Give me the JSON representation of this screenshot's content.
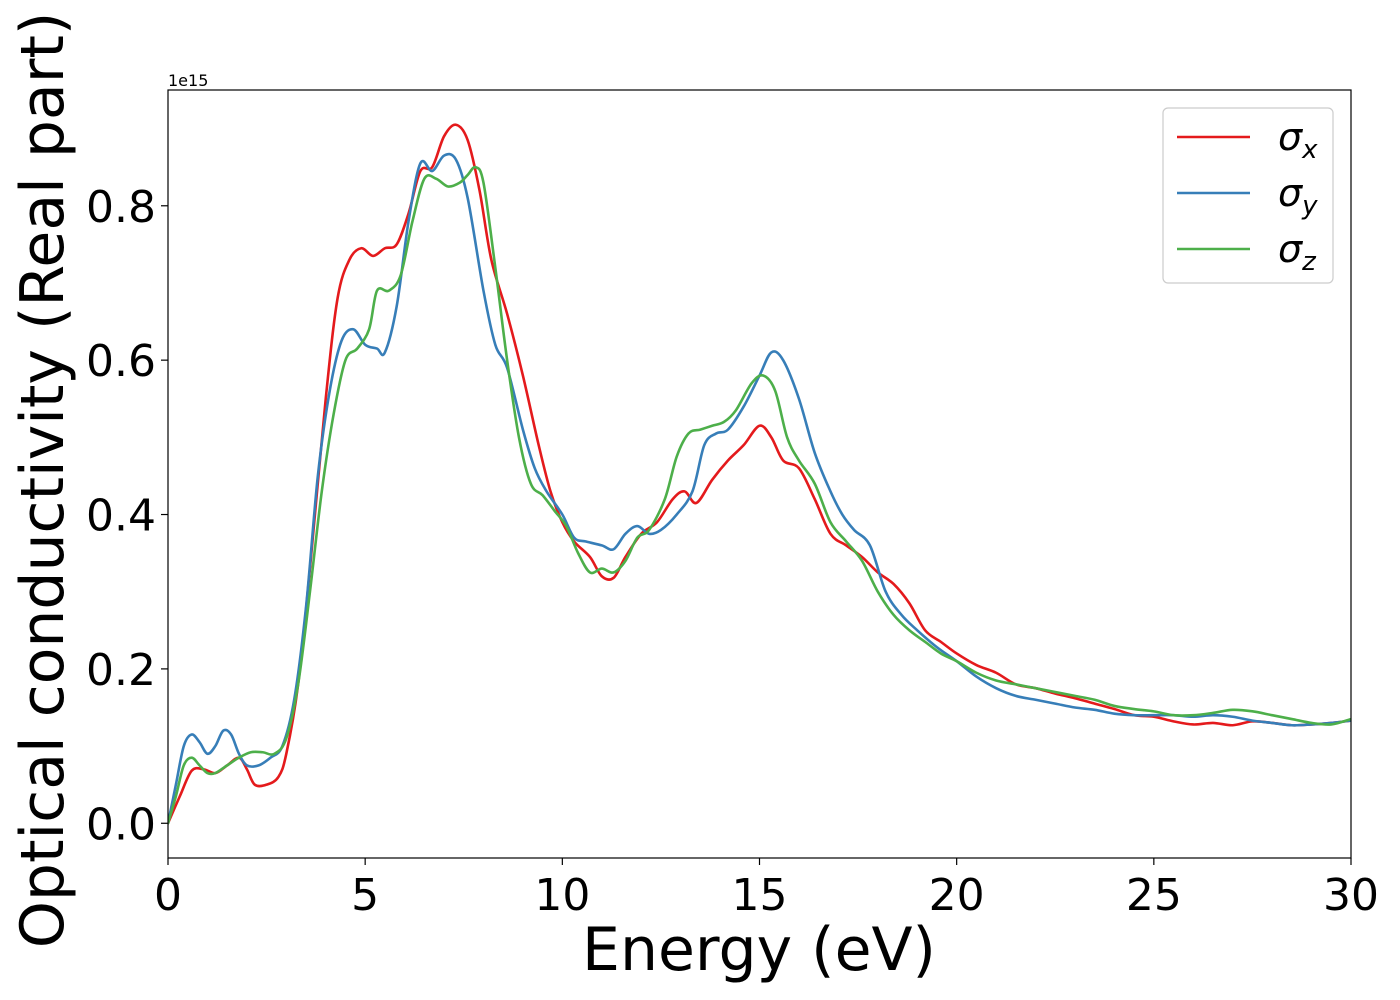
{
  "chart_data": {
    "type": "line",
    "title": "",
    "xlabel": "Energy (eV)",
    "ylabel": "Optical conductivity (Real part)",
    "y_offset_label": "1e15",
    "xlim": [
      0,
      30
    ],
    "ylim": [
      -0.045,
      0.95
    ],
    "xticks": [
      0,
      5,
      10,
      15,
      20,
      25,
      30
    ],
    "yticks": [
      0.0,
      0.2,
      0.4,
      0.6,
      0.8
    ],
    "xtick_labels": [
      "0",
      "5",
      "10",
      "15",
      "20",
      "25",
      "30"
    ],
    "ytick_labels": [
      "0.0",
      "0.2",
      "0.4",
      "0.6",
      "0.8"
    ],
    "grid": false,
    "legend_position": "top-right",
    "series": [
      {
        "name": "σ_x",
        "label_main": "σ",
        "label_sub": "x",
        "color": "#e41a1c",
        "points": [
          [
            0,
            0.0
          ],
          [
            0.3,
            0.035
          ],
          [
            0.6,
            0.068
          ],
          [
            0.9,
            0.07
          ],
          [
            1.2,
            0.065
          ],
          [
            1.5,
            0.075
          ],
          [
            1.8,
            0.085
          ],
          [
            2.0,
            0.07
          ],
          [
            2.2,
            0.05
          ],
          [
            2.5,
            0.05
          ],
          [
            2.8,
            0.06
          ],
          [
            3.0,
            0.09
          ],
          [
            3.3,
            0.18
          ],
          [
            3.6,
            0.33
          ],
          [
            4.0,
            0.55
          ],
          [
            4.3,
            0.68
          ],
          [
            4.6,
            0.73
          ],
          [
            4.9,
            0.745
          ],
          [
            5.2,
            0.735
          ],
          [
            5.5,
            0.745
          ],
          [
            5.8,
            0.75
          ],
          [
            6.1,
            0.79
          ],
          [
            6.4,
            0.845
          ],
          [
            6.7,
            0.85
          ],
          [
            7.0,
            0.89
          ],
          [
            7.3,
            0.905
          ],
          [
            7.6,
            0.885
          ],
          [
            7.9,
            0.82
          ],
          [
            8.2,
            0.73
          ],
          [
            8.6,
            0.66
          ],
          [
            9.0,
            0.58
          ],
          [
            9.4,
            0.49
          ],
          [
            9.7,
            0.43
          ],
          [
            10.0,
            0.39
          ],
          [
            10.3,
            0.365
          ],
          [
            10.7,
            0.345
          ],
          [
            11.0,
            0.32
          ],
          [
            11.3,
            0.318
          ],
          [
            11.6,
            0.345
          ],
          [
            12.0,
            0.375
          ],
          [
            12.4,
            0.39
          ],
          [
            12.8,
            0.42
          ],
          [
            13.1,
            0.43
          ],
          [
            13.4,
            0.415
          ],
          [
            13.8,
            0.445
          ],
          [
            14.2,
            0.47
          ],
          [
            14.6,
            0.49
          ],
          [
            15.0,
            0.515
          ],
          [
            15.3,
            0.5
          ],
          [
            15.6,
            0.47
          ],
          [
            16.0,
            0.46
          ],
          [
            16.4,
            0.42
          ],
          [
            16.8,
            0.375
          ],
          [
            17.2,
            0.36
          ],
          [
            17.6,
            0.345
          ],
          [
            18.0,
            0.325
          ],
          [
            18.4,
            0.31
          ],
          [
            18.8,
            0.285
          ],
          [
            19.2,
            0.25
          ],
          [
            19.6,
            0.235
          ],
          [
            20.0,
            0.22
          ],
          [
            20.5,
            0.205
          ],
          [
            21.0,
            0.195
          ],
          [
            21.5,
            0.18
          ],
          [
            22.0,
            0.175
          ],
          [
            22.5,
            0.168
          ],
          [
            23.0,
            0.162
          ],
          [
            23.5,
            0.155
          ],
          [
            24.0,
            0.148
          ],
          [
            24.5,
            0.14
          ],
          [
            25.0,
            0.138
          ],
          [
            25.5,
            0.132
          ],
          [
            26.0,
            0.128
          ],
          [
            26.5,
            0.13
          ],
          [
            27.0,
            0.127
          ],
          [
            27.5,
            0.132
          ],
          [
            28.0,
            0.13
          ],
          [
            28.5,
            0.127
          ],
          [
            29.0,
            0.128
          ],
          [
            29.5,
            0.13
          ],
          [
            30.0,
            0.133
          ]
        ]
      },
      {
        "name": "σ_y",
        "label_main": "σ",
        "label_sub": "y",
        "color": "#377eb8",
        "points": [
          [
            0,
            0.0
          ],
          [
            0.2,
            0.05
          ],
          [
            0.4,
            0.1
          ],
          [
            0.6,
            0.115
          ],
          [
            0.8,
            0.105
          ],
          [
            1.0,
            0.09
          ],
          [
            1.2,
            0.1
          ],
          [
            1.4,
            0.12
          ],
          [
            1.6,
            0.115
          ],
          [
            1.8,
            0.09
          ],
          [
            2.0,
            0.075
          ],
          [
            2.3,
            0.075
          ],
          [
            2.6,
            0.085
          ],
          [
            2.9,
            0.1
          ],
          [
            3.2,
            0.16
          ],
          [
            3.5,
            0.28
          ],
          [
            3.8,
            0.45
          ],
          [
            4.1,
            0.56
          ],
          [
            4.4,
            0.625
          ],
          [
            4.7,
            0.64
          ],
          [
            5.0,
            0.62
          ],
          [
            5.3,
            0.615
          ],
          [
            5.5,
            0.61
          ],
          [
            5.8,
            0.67
          ],
          [
            6.1,
            0.78
          ],
          [
            6.4,
            0.855
          ],
          [
            6.7,
            0.845
          ],
          [
            7.0,
            0.865
          ],
          [
            7.3,
            0.86
          ],
          [
            7.6,
            0.81
          ],
          [
            8.0,
            0.69
          ],
          [
            8.3,
            0.62
          ],
          [
            8.6,
            0.59
          ],
          [
            9.0,
            0.51
          ],
          [
            9.3,
            0.46
          ],
          [
            9.6,
            0.43
          ],
          [
            10.0,
            0.4
          ],
          [
            10.3,
            0.37
          ],
          [
            10.6,
            0.365
          ],
          [
            11.0,
            0.36
          ],
          [
            11.3,
            0.355
          ],
          [
            11.6,
            0.375
          ],
          [
            11.9,
            0.385
          ],
          [
            12.2,
            0.375
          ],
          [
            12.5,
            0.38
          ],
          [
            12.9,
            0.4
          ],
          [
            13.3,
            0.43
          ],
          [
            13.6,
            0.49
          ],
          [
            13.9,
            0.505
          ],
          [
            14.2,
            0.51
          ],
          [
            14.6,
            0.54
          ],
          [
            15.0,
            0.58
          ],
          [
            15.3,
            0.61
          ],
          [
            15.6,
            0.6
          ],
          [
            16.0,
            0.55
          ],
          [
            16.4,
            0.48
          ],
          [
            16.8,
            0.43
          ],
          [
            17.1,
            0.4
          ],
          [
            17.4,
            0.38
          ],
          [
            17.8,
            0.36
          ],
          [
            18.2,
            0.3
          ],
          [
            18.6,
            0.27
          ],
          [
            19.0,
            0.25
          ],
          [
            19.5,
            0.228
          ],
          [
            20.0,
            0.21
          ],
          [
            20.5,
            0.19
          ],
          [
            21.0,
            0.175
          ],
          [
            21.5,
            0.165
          ],
          [
            22.0,
            0.16
          ],
          [
            22.5,
            0.155
          ],
          [
            23.0,
            0.15
          ],
          [
            23.5,
            0.147
          ],
          [
            24.0,
            0.142
          ],
          [
            24.5,
            0.14
          ],
          [
            25.0,
            0.14
          ],
          [
            25.5,
            0.14
          ],
          [
            26.0,
            0.138
          ],
          [
            26.5,
            0.14
          ],
          [
            27.0,
            0.138
          ],
          [
            27.5,
            0.133
          ],
          [
            28.0,
            0.13
          ],
          [
            28.5,
            0.127
          ],
          [
            29.0,
            0.128
          ],
          [
            29.5,
            0.13
          ],
          [
            30.0,
            0.133
          ]
        ]
      },
      {
        "name": "σ_z",
        "label_main": "σ",
        "label_sub": "z",
        "color": "#4daf4a",
        "points": [
          [
            0,
            0.0
          ],
          [
            0.2,
            0.035
          ],
          [
            0.4,
            0.075
          ],
          [
            0.6,
            0.085
          ],
          [
            0.8,
            0.075
          ],
          [
            1.0,
            0.065
          ],
          [
            1.2,
            0.065
          ],
          [
            1.5,
            0.075
          ],
          [
            1.8,
            0.085
          ],
          [
            2.1,
            0.092
          ],
          [
            2.4,
            0.092
          ],
          [
            2.7,
            0.09
          ],
          [
            3.0,
            0.11
          ],
          [
            3.3,
            0.18
          ],
          [
            3.6,
            0.3
          ],
          [
            3.9,
            0.43
          ],
          [
            4.2,
            0.53
          ],
          [
            4.5,
            0.6
          ],
          [
            4.8,
            0.615
          ],
          [
            5.1,
            0.64
          ],
          [
            5.3,
            0.69
          ],
          [
            5.6,
            0.69
          ],
          [
            5.9,
            0.71
          ],
          [
            6.2,
            0.78
          ],
          [
            6.5,
            0.835
          ],
          [
            6.8,
            0.835
          ],
          [
            7.1,
            0.825
          ],
          [
            7.4,
            0.83
          ],
          [
            7.6,
            0.84
          ],
          [
            7.8,
            0.85
          ],
          [
            8.0,
            0.83
          ],
          [
            8.3,
            0.72
          ],
          [
            8.6,
            0.6
          ],
          [
            8.9,
            0.5
          ],
          [
            9.2,
            0.44
          ],
          [
            9.5,
            0.425
          ],
          [
            9.8,
            0.405
          ],
          [
            10.1,
            0.385
          ],
          [
            10.4,
            0.35
          ],
          [
            10.7,
            0.325
          ],
          [
            11.0,
            0.33
          ],
          [
            11.3,
            0.325
          ],
          [
            11.6,
            0.34
          ],
          [
            11.9,
            0.37
          ],
          [
            12.2,
            0.38
          ],
          [
            12.6,
            0.42
          ],
          [
            12.9,
            0.475
          ],
          [
            13.2,
            0.505
          ],
          [
            13.5,
            0.51
          ],
          [
            13.8,
            0.515
          ],
          [
            14.1,
            0.52
          ],
          [
            14.4,
            0.535
          ],
          [
            14.8,
            0.57
          ],
          [
            15.1,
            0.58
          ],
          [
            15.4,
            0.56
          ],
          [
            15.7,
            0.5
          ],
          [
            16.0,
            0.47
          ],
          [
            16.4,
            0.44
          ],
          [
            16.8,
            0.39
          ],
          [
            17.2,
            0.365
          ],
          [
            17.6,
            0.34
          ],
          [
            18.0,
            0.3
          ],
          [
            18.4,
            0.27
          ],
          [
            18.8,
            0.25
          ],
          [
            19.2,
            0.235
          ],
          [
            19.6,
            0.22
          ],
          [
            20.0,
            0.21
          ],
          [
            20.5,
            0.195
          ],
          [
            21.0,
            0.185
          ],
          [
            21.5,
            0.18
          ],
          [
            22.0,
            0.175
          ],
          [
            22.5,
            0.17
          ],
          [
            23.0,
            0.165
          ],
          [
            23.5,
            0.16
          ],
          [
            24.0,
            0.152
          ],
          [
            24.5,
            0.148
          ],
          [
            25.0,
            0.145
          ],
          [
            25.5,
            0.14
          ],
          [
            26.0,
            0.14
          ],
          [
            26.5,
            0.143
          ],
          [
            27.0,
            0.147
          ],
          [
            27.5,
            0.145
          ],
          [
            28.0,
            0.14
          ],
          [
            28.5,
            0.135
          ],
          [
            29.0,
            0.13
          ],
          [
            29.5,
            0.128
          ],
          [
            30.0,
            0.135
          ]
        ]
      }
    ]
  }
}
